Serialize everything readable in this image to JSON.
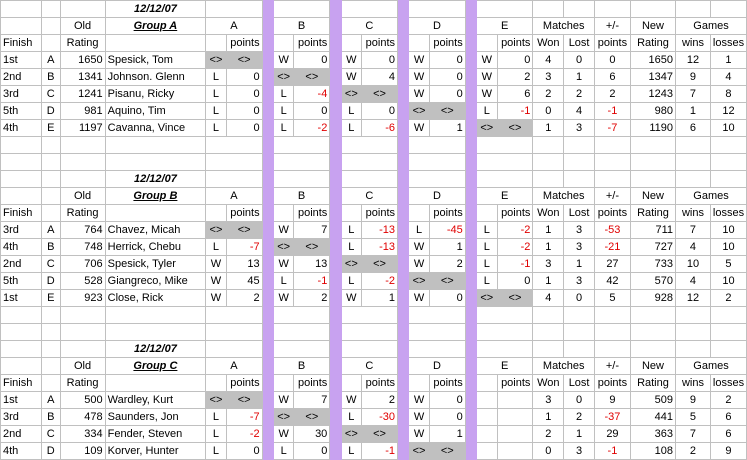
{
  "columns": {
    "finish": "Finish",
    "old": "Old",
    "rating": "Rating",
    "points": "points",
    "matches": "Matches",
    "won": "Won",
    "lost": "Lost",
    "pm": "+/-",
    "pm_points": "points",
    "new": "New",
    "new_rating": "Rating",
    "games": "Games",
    "wins": "wins",
    "losses": "losses",
    "letters": [
      "A",
      "B",
      "C",
      "D",
      "E"
    ]
  },
  "groups": [
    {
      "date": "12/12/07",
      "title": "Group A",
      "rows": [
        {
          "finish": "1st",
          "letter": "A",
          "old": "1650",
          "name": "Spesick, Tom",
          "r": [
            [
              "<>",
              "<>"
            ],
            [
              "W",
              "0"
            ],
            [
              "W",
              "0"
            ],
            [
              "W",
              "0"
            ],
            [
              "W",
              "0"
            ]
          ],
          "won": "4",
          "lost": "0",
          "pm": "0",
          "new": "1650",
          "wins": "12",
          "losses": "1"
        },
        {
          "finish": "2nd",
          "letter": "B",
          "old": "1341",
          "name": "Johnson. Glenn",
          "r": [
            [
              "L",
              "0"
            ],
            [
              "<>",
              "<>"
            ],
            [
              "W",
              "4"
            ],
            [
              "W",
              "0"
            ],
            [
              "W",
              "2"
            ]
          ],
          "won": "3",
          "lost": "1",
          "pm": "6",
          "new": "1347",
          "wins": "9",
          "losses": "4"
        },
        {
          "finish": "3rd",
          "letter": "C",
          "old": "1241",
          "name": "Pisanu, Ricky",
          "r": [
            [
              "L",
              "0"
            ],
            [
              "L",
              "-4"
            ],
            [
              "<>",
              "<>"
            ],
            [
              "W",
              "0"
            ],
            [
              "W",
              "6"
            ]
          ],
          "won": "2",
          "lost": "2",
          "pm": "2",
          "new": "1243",
          "wins": "7",
          "losses": "8"
        },
        {
          "finish": "5th",
          "letter": "D",
          "old": "981",
          "name": "Aquino, Tim",
          "r": [
            [
              "L",
              "0"
            ],
            [
              "L",
              "0"
            ],
            [
              "L",
              "0"
            ],
            [
              "<>",
              "<>"
            ],
            [
              "L",
              "-1"
            ]
          ],
          "won": "0",
          "lost": "4",
          "pm": "-1",
          "new": "980",
          "wins": "1",
          "losses": "12"
        },
        {
          "finish": "4th",
          "letter": "E",
          "old": "1197",
          "name": "Cavanna, Vince",
          "r": [
            [
              "L",
              "0"
            ],
            [
              "L",
              "-2"
            ],
            [
              "L",
              "-6"
            ],
            [
              "W",
              "1"
            ],
            [
              "<>",
              "<>"
            ]
          ],
          "won": "1",
          "lost": "3",
          "pm": "-7",
          "new": "1190",
          "wins": "6",
          "losses": "10"
        }
      ]
    },
    {
      "date": "12/12/07",
      "title": "Group B",
      "rows": [
        {
          "finish": "3rd",
          "letter": "A",
          "old": "764",
          "name": "Chavez, Micah",
          "r": [
            [
              "<>",
              "<>"
            ],
            [
              "W",
              "7"
            ],
            [
              "L",
              "-13"
            ],
            [
              "L",
              "-45"
            ],
            [
              "L",
              "-2"
            ]
          ],
          "won": "1",
          "lost": "3",
          "pm": "-53",
          "new": "711",
          "wins": "7",
          "losses": "10"
        },
        {
          "finish": "4th",
          "letter": "B",
          "old": "748",
          "name": "Herrick, Chebu",
          "r": [
            [
              "L",
              "-7"
            ],
            [
              "<>",
              "<>"
            ],
            [
              "L",
              "-13"
            ],
            [
              "W",
              "1"
            ],
            [
              "L",
              "-2"
            ]
          ],
          "won": "1",
          "lost": "3",
          "pm": "-21",
          "new": "727",
          "wins": "4",
          "losses": "10"
        },
        {
          "finish": "2nd",
          "letter": "C",
          "old": "706",
          "name": "Spesick, Tyler",
          "r": [
            [
              "W",
              "13"
            ],
            [
              "W",
              "13"
            ],
            [
              "<>",
              "<>"
            ],
            [
              "W",
              "2"
            ],
            [
              "L",
              "-1"
            ]
          ],
          "won": "3",
          "lost": "1",
          "pm": "27",
          "new": "733",
          "wins": "10",
          "losses": "5"
        },
        {
          "finish": "5th",
          "letter": "D",
          "old": "528",
          "name": "Giangreco, Mike",
          "r": [
            [
              "W",
              "45"
            ],
            [
              "L",
              "-1"
            ],
            [
              "L",
              "-2"
            ],
            [
              "<>",
              "<>"
            ],
            [
              "L",
              "0"
            ]
          ],
          "won": "1",
          "lost": "3",
          "pm": "42",
          "new": "570",
          "wins": "4",
          "losses": "10"
        },
        {
          "finish": "1st",
          "letter": "E",
          "old": "923",
          "name": "Close, Rick",
          "r": [
            [
              "W",
              "2"
            ],
            [
              "W",
              "2"
            ],
            [
              "W",
              "1"
            ],
            [
              "W",
              "0"
            ],
            [
              "<>",
              "<>"
            ]
          ],
          "won": "4",
          "lost": "0",
          "pm": "5",
          "new": "928",
          "wins": "12",
          "losses": "2"
        }
      ]
    },
    {
      "date": "12/12/07",
      "title": "Group C",
      "rows": [
        {
          "finish": "1st",
          "letter": "A",
          "old": "500",
          "name": "Wardley, Kurt",
          "r": [
            [
              "<>",
              "<>"
            ],
            [
              "W",
              "7"
            ],
            [
              "W",
              "2"
            ],
            [
              "W",
              "0"
            ],
            [
              "",
              ""
            ]
          ],
          "won": "3",
          "lost": "0",
          "pm": "9",
          "new": "509",
          "wins": "9",
          "losses": "2"
        },
        {
          "finish": "3rd",
          "letter": "B",
          "old": "478",
          "name": "Saunders, Jon",
          "r": [
            [
              "L",
              "-7"
            ],
            [
              "<>",
              "<>"
            ],
            [
              "L",
              "-30"
            ],
            [
              "W",
              "0"
            ],
            [
              "",
              ""
            ]
          ],
          "won": "1",
          "lost": "2",
          "pm": "-37",
          "new": "441",
          "wins": "5",
          "losses": "6"
        },
        {
          "finish": "2nd",
          "letter": "C",
          "old": "334",
          "name": "Fender, Steven",
          "r": [
            [
              "L",
              "-2"
            ],
            [
              "W",
              "30"
            ],
            [
              "<>",
              "<>"
            ],
            [
              "W",
              "1"
            ],
            [
              "",
              ""
            ]
          ],
          "won": "2",
          "lost": "1",
          "pm": "29",
          "new": "363",
          "wins": "7",
          "losses": "6"
        },
        {
          "finish": "4th",
          "letter": "D",
          "old": "109",
          "name": "Korver, Hunter",
          "r": [
            [
              "L",
              "0"
            ],
            [
              "L",
              "0"
            ],
            [
              "L",
              "-1"
            ],
            [
              "<>",
              "<>"
            ],
            [
              "",
              ""
            ]
          ],
          "won": "0",
          "lost": "3",
          "pm": "-1",
          "new": "108",
          "wins": "2",
          "losses": "9"
        }
      ]
    }
  ]
}
